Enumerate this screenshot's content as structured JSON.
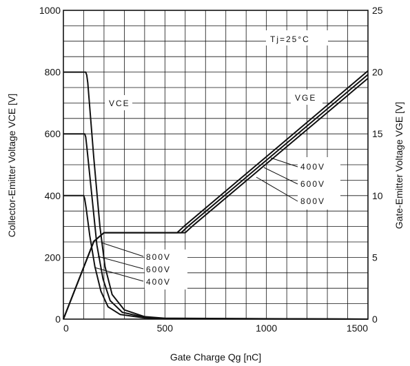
{
  "chart_data": {
    "type": "line",
    "title": "",
    "xlabel": "Gate Charge Qg [nC]",
    "ylabel_left": "Collector-Emitter Voltage VCE [V]",
    "ylabel_right": "Gate-Emitter Voltage VGE [V]",
    "xlim": [
      0,
      1500
    ],
    "ylim_left": [
      0,
      1000
    ],
    "ylim_right": [
      0,
      25
    ],
    "xticks": [
      "0",
      "500",
      "1000",
      "1500"
    ],
    "yticks_left": [
      "0",
      "200",
      "400",
      "600",
      "800",
      "1000"
    ],
    "yticks_right": [
      "0",
      "5",
      "10",
      "15",
      "20",
      "25"
    ],
    "grid": true,
    "condition": "Tj=25°C",
    "vce_label": "VCE",
    "vge_label": "VGE",
    "vce_series": [
      {
        "name": "800V",
        "axis": "left",
        "x": [
          0,
          110,
          115,
          120,
          150,
          180,
          205,
          240,
          300,
          400,
          500,
          1500
        ],
        "y": [
          800,
          800,
          790,
          765,
          520,
          300,
          170,
          80,
          30,
          8,
          3,
          0
        ]
      },
      {
        "name": "600V",
        "axis": "left",
        "x": [
          0,
          105,
          110,
          115,
          140,
          165,
          195,
          230,
          290,
          400,
          500,
          1500
        ],
        "y": [
          600,
          600,
          590,
          560,
          400,
          240,
          130,
          60,
          22,
          6,
          2,
          0
        ]
      },
      {
        "name": "400V",
        "axis": "left",
        "x": [
          0,
          100,
          105,
          112,
          130,
          155,
          185,
          220,
          280,
          400,
          500,
          1500
        ],
        "y": [
          400,
          400,
          390,
          360,
          270,
          170,
          90,
          40,
          15,
          4,
          1,
          0
        ]
      }
    ],
    "vge_series": [
      {
        "name": "400V",
        "axis": "right",
        "x": [
          0,
          150,
          200,
          560,
          600,
          1500
        ],
        "y": [
          0,
          6.3,
          7.0,
          7.0,
          7.6,
          20.1
        ]
      },
      {
        "name": "600V",
        "axis": "right",
        "x": [
          0,
          150,
          200,
          580,
          620,
          1500
        ],
        "y": [
          0,
          6.3,
          7.0,
          7.0,
          7.6,
          19.8
        ]
      },
      {
        "name": "800V",
        "axis": "right",
        "x": [
          0,
          150,
          200,
          600,
          640,
          1500
        ],
        "y": [
          0,
          6.3,
          7.0,
          7.0,
          7.6,
          19.5
        ]
      }
    ],
    "vce_labels": [
      "800V",
      "600V",
      "400V"
    ],
    "vge_labels": [
      "400V",
      "600V",
      "800V"
    ]
  }
}
